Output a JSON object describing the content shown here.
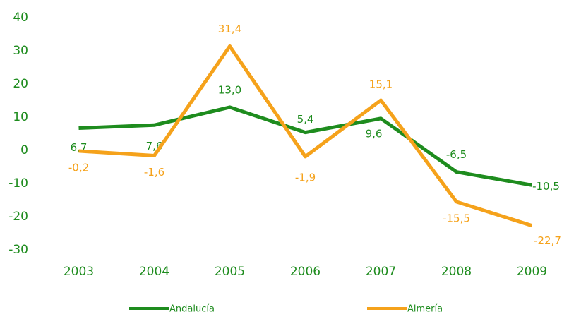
{
  "chart_data": {
    "type": "line",
    "categories": [
      "2003",
      "2004",
      "2005",
      "2006",
      "2007",
      "2008",
      "2009"
    ],
    "series": [
      {
        "name": "Andalucía",
        "color": "#1e8c1e",
        "values": [
          6.7,
          7.6,
          13.0,
          5.4,
          9.6,
          -6.5,
          -10.5
        ],
        "value_labels": [
          "6,7",
          "7,6",
          "13,0",
          "5,4",
          "9,6",
          "-6,5",
          "-10,5"
        ]
      },
      {
        "name": "Almería",
        "color": "#f5a21b",
        "values": [
          -0.2,
          -1.6,
          31.4,
          -1.9,
          15.1,
          -15.5,
          -22.7
        ],
        "value_labels": [
          "-0,2",
          "-1,6",
          "31,4",
          "-1,9",
          "15,1",
          "-15,5",
          "-22,7"
        ]
      }
    ],
    "ylim": [
      -30,
      40
    ],
    "yticks": [
      -30,
      -20,
      -10,
      0,
      10,
      20,
      30,
      40
    ],
    "grid": false,
    "legend": "bottom"
  }
}
